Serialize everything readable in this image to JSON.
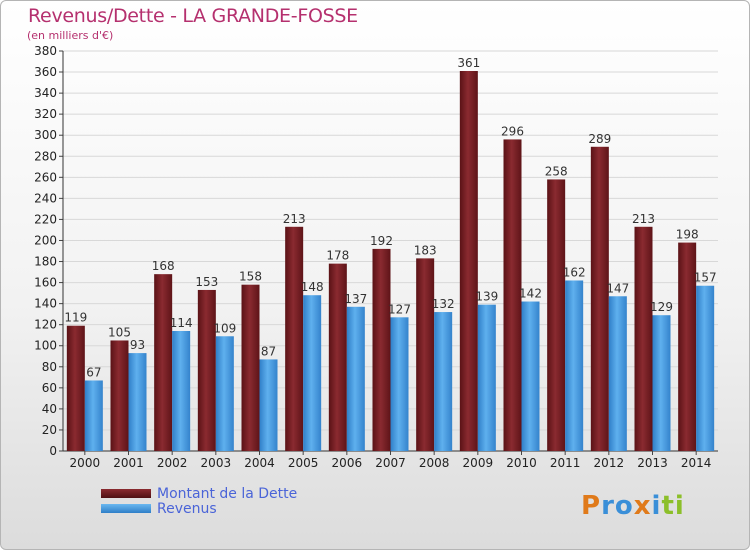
{
  "title": "Revenus/Dette - LA GRANDE-FOSSE",
  "subtitle": "(en milliers d'€)",
  "logo": {
    "text": "Proxiti",
    "letters": [
      "P",
      "r",
      "o",
      "x",
      "i",
      "t",
      "i"
    ],
    "colors": [
      "#e07a1a",
      "#3a8fd8",
      "#3a8fd8",
      "#e07a1a",
      "#3a8fd8",
      "#8cbf2a",
      "#8cbf2a"
    ]
  },
  "colors": {
    "dette": "#6b1a1e",
    "revenus": "#3b8fd8",
    "title": "#b5306e",
    "legend_text": "#4a64d8"
  },
  "legend": {
    "items": [
      {
        "label": "Montant de la Dette",
        "color": "#6b1a1e"
      },
      {
        "label": "Revenus",
        "color": "#3b8fd8"
      }
    ],
    "placement": "bottom-left"
  },
  "chart_data": {
    "type": "bar",
    "title": "Revenus/Dette - LA GRANDE-FOSSE",
    "ylabel": "(en milliers d'€)",
    "ylim": [
      0,
      380
    ],
    "yticks": [
      0,
      20,
      40,
      60,
      80,
      100,
      120,
      140,
      160,
      180,
      200,
      220,
      240,
      260,
      280,
      300,
      320,
      340,
      360,
      380
    ],
    "grid": true,
    "categories": [
      "2000",
      "2001",
      "2002",
      "2003",
      "2004",
      "2005",
      "2006",
      "2007",
      "2008",
      "2009",
      "2010",
      "2011",
      "2012",
      "2013",
      "2014"
    ],
    "series": [
      {
        "name": "Montant de la Dette",
        "values": [
          119,
          105,
          168,
          153,
          158,
          213,
          178,
          192,
          183,
          361,
          296,
          258,
          289,
          213,
          198
        ]
      },
      {
        "name": "Revenus",
        "values": [
          67,
          93,
          114,
          109,
          87,
          148,
          137,
          127,
          132,
          139,
          142,
          162,
          147,
          129,
          157
        ]
      }
    ]
  }
}
